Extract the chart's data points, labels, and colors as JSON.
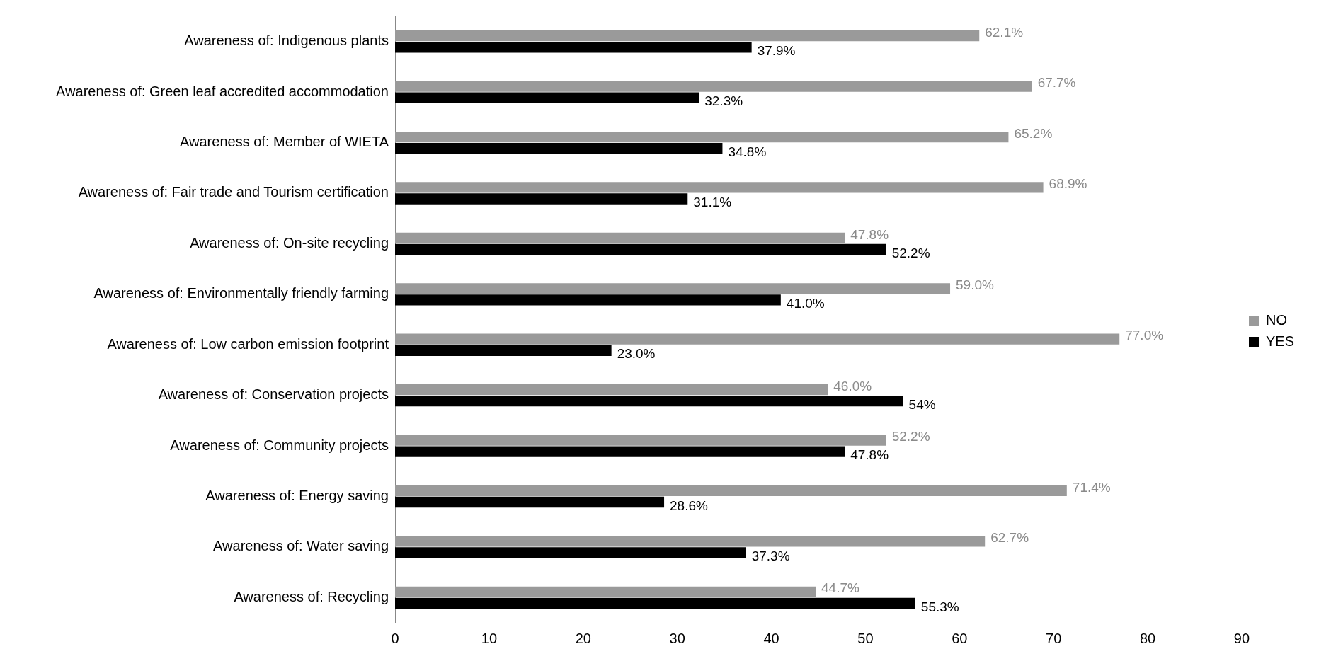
{
  "chart_data": {
    "type": "bar",
    "orientation": "horizontal",
    "categories": [
      "Awareness of: Indigenous plants",
      "Awareness of: Green leaf accredited accommodation",
      "Awareness of: Member of WIETA",
      "Awareness of: Fair trade and Tourism certification",
      "Awareness of: On-site recycling",
      "Awareness of: Environmentally friendly farming",
      "Awareness of: Low carbon emission footprint",
      "Awareness of: Conservation projects",
      "Awareness of: Community projects",
      "Awareness of: Energy saving",
      "Awareness of: Water saving",
      "Awareness of: Recycling"
    ],
    "series": [
      {
        "name": "NO",
        "color": "#9a9a9a",
        "values": [
          62.1,
          67.7,
          65.2,
          68.9,
          47.8,
          59.0,
          77.0,
          46.0,
          52.2,
          71.4,
          62.7,
          44.7
        ],
        "value_labels": [
          "62.1%",
          "67.7%",
          "65.2%",
          "68.9%",
          "47.8%",
          "59.0%",
          "77.0%",
          "46.0%",
          "52.2%",
          "71.4%",
          "62.7%",
          "44.7%"
        ]
      },
      {
        "name": "YES",
        "color": "#000000",
        "values": [
          37.9,
          32.3,
          34.8,
          31.1,
          52.2,
          41.0,
          23.0,
          54,
          47.8,
          28.6,
          37.3,
          55.3
        ],
        "value_labels": [
          "37.9%",
          "32.3%",
          "34.8%",
          "31.1%",
          "52.2%",
          "41.0%",
          "23.0%",
          "54%",
          "47.8%",
          "28.6%",
          "37.3%",
          "55.3%"
        ]
      }
    ],
    "xlim": [
      0,
      90
    ],
    "xticks": [
      0,
      10,
      20,
      30,
      40,
      50,
      60,
      70,
      80,
      90
    ],
    "legend": "right",
    "grid": false
  }
}
